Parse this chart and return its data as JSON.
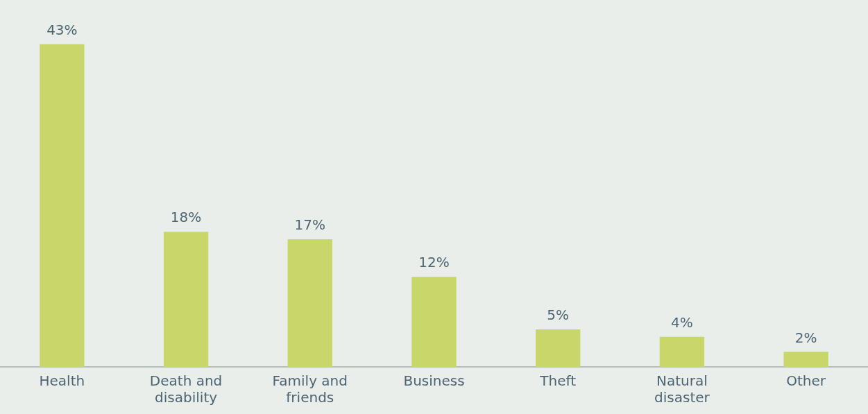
{
  "chart_data": {
    "type": "bar",
    "categories": [
      "Health",
      "Death and disability",
      "Family and friends",
      "Business",
      "Theft",
      "Natural disaster",
      "Other"
    ],
    "values": [
      43,
      18,
      17,
      12,
      5,
      4,
      2
    ],
    "value_labels": [
      "43%",
      "18%",
      "17%",
      "12%",
      "5%",
      "4%",
      "2%"
    ],
    "color": "#c8d66a",
    "grid": false,
    "legend": false
  }
}
